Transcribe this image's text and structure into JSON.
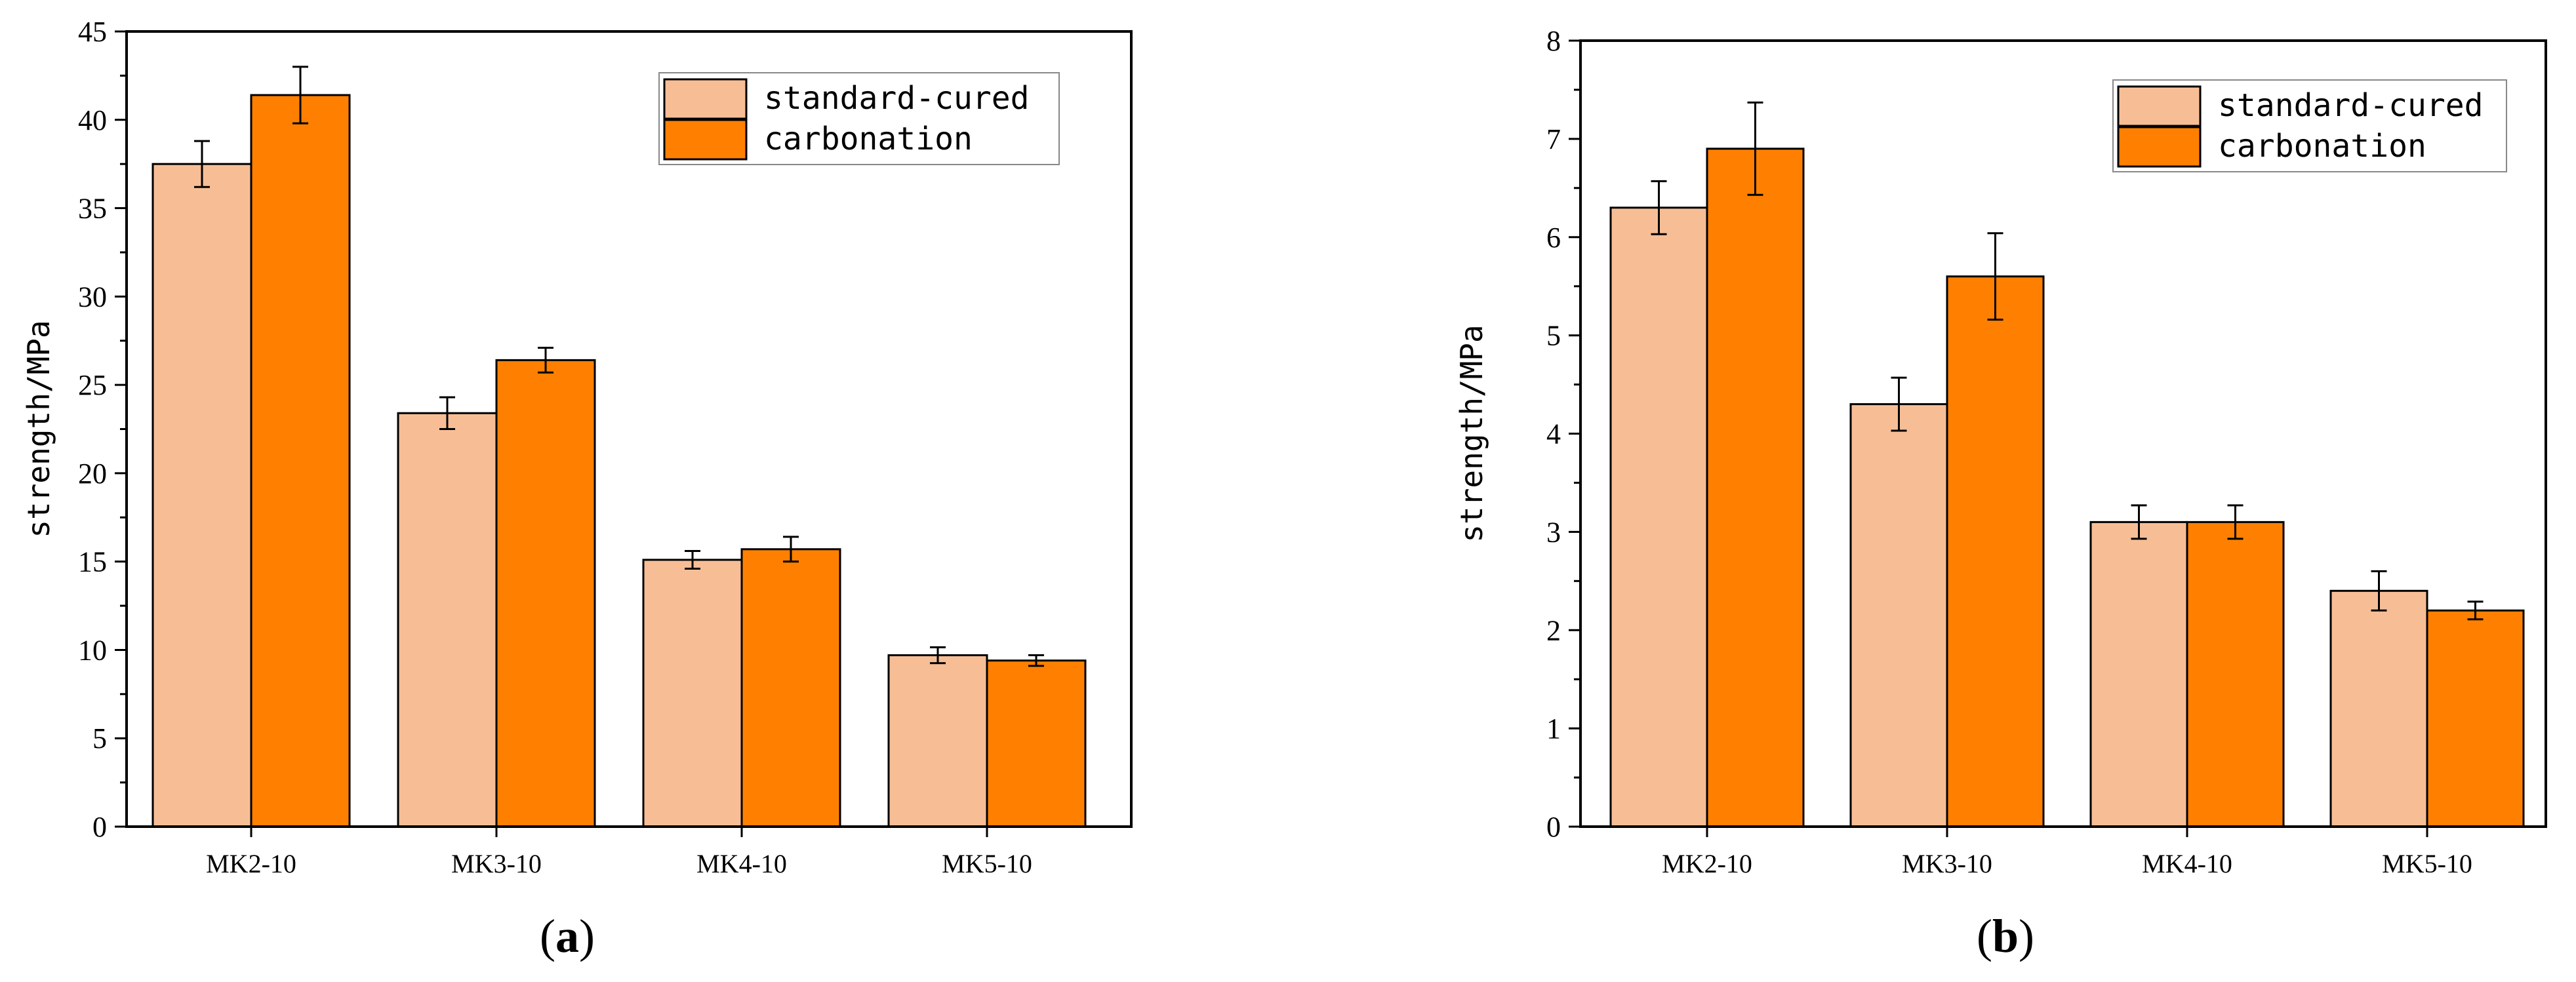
{
  "colors": {
    "standard": "#F7BE96",
    "carbonation": "#FF8000",
    "axis": "#000000",
    "background": "#FFFFFF"
  },
  "chart_data": [
    {
      "type": "bar",
      "panel_label": "a",
      "title": "",
      "xlabel": "",
      "ylabel": "strength/MPa",
      "ylim": [
        0,
        45
      ],
      "yticks": [
        0,
        5,
        10,
        15,
        20,
        25,
        30,
        35,
        40,
        45
      ],
      "categories": [
        "MK2-10",
        "MK3-10",
        "MK4-10",
        "MK5-10"
      ],
      "legend_position": "top-right",
      "series": [
        {
          "name": "standard-cured",
          "values": [
            37.5,
            23.4,
            15.1,
            9.7
          ],
          "errors": [
            1.3,
            0.9,
            0.5,
            0.45
          ]
        },
        {
          "name": "carbonation",
          "values": [
            41.4,
            26.4,
            15.7,
            9.4
          ],
          "errors": [
            1.6,
            0.7,
            0.7,
            0.3
          ]
        }
      ]
    },
    {
      "type": "bar",
      "panel_label": "b",
      "title": "",
      "xlabel": "",
      "ylabel": "strength/MPa",
      "ylim": [
        0,
        8
      ],
      "yticks": [
        0,
        1,
        2,
        3,
        4,
        5,
        6,
        7,
        8
      ],
      "categories": [
        "MK2-10",
        "MK3-10",
        "MK4-10",
        "MK5-10"
      ],
      "legend_position": "top-right",
      "series": [
        {
          "name": "standard-cured",
          "values": [
            6.3,
            4.3,
            3.1,
            2.4
          ],
          "errors": [
            0.27,
            0.27,
            0.17,
            0.2
          ]
        },
        {
          "name": "carbonation",
          "values": [
            6.9,
            5.6,
            3.1,
            2.2
          ],
          "errors": [
            0.47,
            0.44,
            0.17,
            0.09
          ]
        }
      ]
    }
  ]
}
